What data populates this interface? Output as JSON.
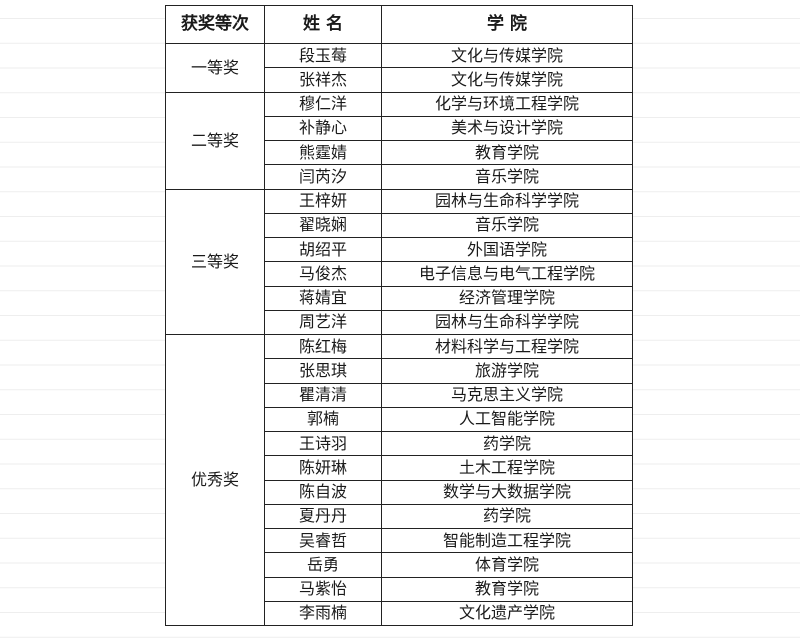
{
  "table": {
    "headers": [
      "获奖等次",
      "姓 名",
      "学 院"
    ],
    "groups": [
      {
        "level": "一等奖",
        "rows": [
          {
            "name": "段玉莓",
            "college": "文化与传媒学院"
          },
          {
            "name": "张祥杰",
            "college": "文化与传媒学院"
          }
        ]
      },
      {
        "level": "二等奖",
        "rows": [
          {
            "name": "穆仁洋",
            "college": "化学与环境工程学院"
          },
          {
            "name": "补静心",
            "college": "美术与设计学院"
          },
          {
            "name": "熊霆婧",
            "college": "教育学院"
          },
          {
            "name": "闫芮汐",
            "college": "音乐学院"
          }
        ]
      },
      {
        "level": "三等奖",
        "rows": [
          {
            "name": "王梓妍",
            "college": "园林与生命科学学院"
          },
          {
            "name": "翟晓娴",
            "college": "音乐学院"
          },
          {
            "name": "胡绍平",
            "college": "外国语学院"
          },
          {
            "name": "马俊杰",
            "college": "电子信息与电气工程学院"
          },
          {
            "name": "蒋婧宜",
            "college": "经济管理学院"
          },
          {
            "name": "周艺洋",
            "college": "园林与生命科学学院"
          }
        ]
      },
      {
        "level": "优秀奖",
        "rows": [
          {
            "name": "陈红梅",
            "college": "材料科学与工程学院"
          },
          {
            "name": "张思琪",
            "college": "旅游学院"
          },
          {
            "name": "瞿清清",
            "college": "马克思主义学院"
          },
          {
            "name": "郭楠",
            "college": "人工智能学院"
          },
          {
            "name": "王诗羽",
            "college": "药学院"
          },
          {
            "name": "陈妍琳",
            "college": "土木工程学院"
          },
          {
            "name": "陈自波",
            "college": "数学与大数据学院"
          },
          {
            "name": "夏丹丹",
            "college": "药学院"
          },
          {
            "name": "吴睿哲",
            "college": "智能制造工程学院"
          },
          {
            "name": "岳勇",
            "college": "体育学院"
          },
          {
            "name": "马紫怡",
            "college": "教育学院"
          },
          {
            "name": "李雨楠",
            "college": "文化遗产学院"
          }
        ]
      }
    ]
  }
}
